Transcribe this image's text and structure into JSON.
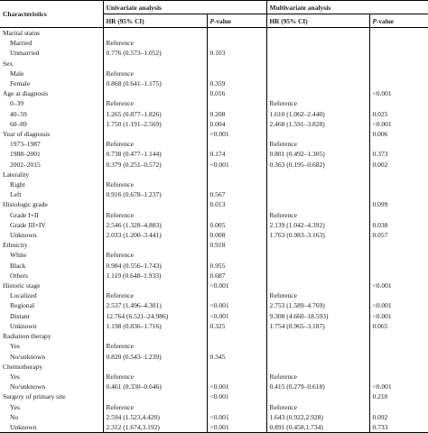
{
  "header": {
    "characteristics": "Characteristics",
    "univariate": "Univariate analysis",
    "multivariate": "Multivariate analysis",
    "hr_label": "HR (95% CI)",
    "p_label_p": "P",
    "p_label_rest": "-value"
  },
  "rows": [
    {
      "label": "Marital status",
      "level": 0,
      "u_hr": "",
      "u_p": "",
      "m_hr": "",
      "m_p": ""
    },
    {
      "label": "Married",
      "level": 1,
      "u_hr": "Reference",
      "u_p": "",
      "m_hr": "",
      "m_p": ""
    },
    {
      "label": "Unmarried",
      "level": 1,
      "u_hr": "0.776 (0.573–1.052)",
      "u_p": "0.103",
      "m_hr": "",
      "m_p": ""
    },
    {
      "label": "Sex",
      "level": 0,
      "u_hr": "",
      "u_p": "",
      "m_hr": "",
      "m_p": ""
    },
    {
      "label": "Male",
      "level": 1,
      "u_hr": "Reference",
      "u_p": "",
      "m_hr": "",
      "m_p": ""
    },
    {
      "label": "Female",
      "level": 1,
      "u_hr": "0.868 (0.641–1.175)",
      "u_p": "0.359",
      "m_hr": "",
      "m_p": ""
    },
    {
      "label": "Age at diagnosis",
      "level": 0,
      "u_hr": "",
      "u_p": "0.016",
      "m_hr": "",
      "m_p": "<0.001"
    },
    {
      "label": "0–39",
      "level": 1,
      "u_hr": "Reference",
      "u_p": "",
      "m_hr": "Reference",
      "m_p": ""
    },
    {
      "label": "40–59",
      "level": 1,
      "u_hr": "1.265 (0.877–1.826)",
      "u_p": "0.208",
      "m_hr": "1.610 (1.062–2.440)",
      "m_p": "0.025"
    },
    {
      "label": "60–89",
      "level": 1,
      "u_hr": "1.750 (1.191–2.569)",
      "u_p": "0.004",
      "m_hr": "2.468 (1.591–3.828)",
      "m_p": "<0.001"
    },
    {
      "label": "Year of diagnosis",
      "level": 0,
      "u_hr": "",
      "u_p": "<0.001",
      "m_hr": "",
      "m_p": "0.006"
    },
    {
      "label": "1973–1987",
      "level": 1,
      "u_hr": "Reference",
      "u_p": "",
      "m_hr": "Reference",
      "m_p": ""
    },
    {
      "label": "1988–2001",
      "level": 1,
      "u_hr": "0.738 (0.477–1.144)",
      "u_p": "0.174",
      "m_hr": "0.801 (0.492–1.305)",
      "m_p": "0.373"
    },
    {
      "label": "2002–2015",
      "level": 1,
      "u_hr": "0.379 (0.251–0.572)",
      "u_p": "<0.001",
      "m_hr": "0.363 (0.195–0.682)",
      "m_p": "0.002"
    },
    {
      "label": "Laterality",
      "level": 0,
      "u_hr": "",
      "u_p": "",
      "m_hr": "",
      "m_p": ""
    },
    {
      "label": "Right",
      "level": 1,
      "u_hr": "Reference",
      "u_p": "",
      "m_hr": "",
      "m_p": ""
    },
    {
      "label": "Left",
      "level": 1,
      "u_hr": "0.916 (0.678–1.237)",
      "u_p": "0.567",
      "m_hr": "",
      "m_p": ""
    },
    {
      "label": "Histologic grade",
      "level": 0,
      "u_hr": "",
      "u_p": "0.013",
      "m_hr": "",
      "m_p": "0.099"
    },
    {
      "label": "Grade I+II",
      "level": 1,
      "u_hr": "Reference",
      "u_p": "",
      "m_hr": "Reference",
      "m_p": ""
    },
    {
      "label": "Grade III+IV",
      "level": 1,
      "u_hr": "2.546 (1.328–4.883)",
      "u_p": "0.005",
      "m_hr": "2.139 (1.042–4.392)",
      "m_p": "0.038"
    },
    {
      "label": "Unknown",
      "level": 1,
      "u_hr": "2.033 (1.200–3.441)",
      "u_p": "0.008",
      "m_hr": "1.763 (0.983–3.163)",
      "m_p": "0.057"
    },
    {
      "label": "Ethnicity",
      "level": 0,
      "u_hr": "",
      "u_p": "0.918",
      "m_hr": "",
      "m_p": ""
    },
    {
      "label": "White",
      "level": 1,
      "u_hr": "Reference",
      "u_p": "",
      "m_hr": "",
      "m_p": ""
    },
    {
      "label": "Black",
      "level": 1,
      "u_hr": "0.984 (0.556–1.743)",
      "u_p": "0.955",
      "m_hr": "",
      "m_p": ""
    },
    {
      "label": "Others",
      "level": 1,
      "u_hr": "1.119 (0.648–1.933)",
      "u_p": "0.687",
      "m_hr": "",
      "m_p": ""
    },
    {
      "label": "Historic stage",
      "level": 0,
      "u_hr": "",
      "u_p": "<0.001",
      "m_hr": "",
      "m_p": "<0.001"
    },
    {
      "label": "Localized",
      "level": 1,
      "u_hr": "Reference",
      "u_p": "",
      "m_hr": "Reference",
      "m_p": ""
    },
    {
      "label": "Regional",
      "level": 1,
      "u_hr": "2.537 (1.496–4.301)",
      "u_p": "<0.001",
      "m_hr": "2.753 (1.589–4.769)",
      "m_p": "<0.001"
    },
    {
      "label": "Distant",
      "level": 1,
      "u_hr": "12.764 (6.521–24.986)",
      "u_p": "<0.001",
      "m_hr": "9.308 (4.660–18.593)",
      "m_p": "<0.001"
    },
    {
      "label": "Unknown",
      "level": 1,
      "u_hr": "1.198 (0.836–1.716)",
      "u_p": "0.325",
      "m_hr": "1.754 (0.965–3.187)",
      "m_p": "0.065"
    },
    {
      "label": "Radiation therapy",
      "level": 0,
      "u_hr": "",
      "u_p": "",
      "m_hr": "",
      "m_p": ""
    },
    {
      "label": "Yes",
      "level": 1,
      "u_hr": "Reference",
      "u_p": "",
      "m_hr": "",
      "m_p": ""
    },
    {
      "label": "No/unknown",
      "level": 1,
      "u_hr": "0.820 (0.543–1.239)",
      "u_p": "0.345",
      "m_hr": "",
      "m_p": ""
    },
    {
      "label": "Chemotherapy",
      "level": 0,
      "u_hr": "",
      "u_p": "",
      "m_hr": "",
      "m_p": ""
    },
    {
      "label": "Yes",
      "level": 1,
      "u_hr": "Reference",
      "u_p": "",
      "m_hr": "Reference",
      "m_p": ""
    },
    {
      "label": "No/unknown",
      "level": 1,
      "u_hr": "0.461 (0.330–0.646)",
      "u_p": "<0.001",
      "m_hr": "0.415 (0.279–0.618)",
      "m_p": "<0.001"
    },
    {
      "label": "Surgery of primary site",
      "level": 0,
      "u_hr": "",
      "u_p": "<0.001",
      "m_hr": "",
      "m_p": "0.210"
    },
    {
      "label": "Yes",
      "level": 1,
      "u_hr": "Reference",
      "u_p": "",
      "m_hr": "Reference",
      "m_p": ""
    },
    {
      "label": "No",
      "level": 1,
      "u_hr": "2.594 (1.523,4.420)",
      "u_p": "<0.001",
      "m_hr": "1.643 (0.922,2.928)",
      "m_p": "0.092"
    },
    {
      "label": "Unknown",
      "level": 1,
      "u_hr": "2.312 (1.674,3.192)",
      "u_p": "<0.001",
      "m_hr": "0.891 (0.458,1.734)",
      "m_p": "0.733"
    }
  ]
}
